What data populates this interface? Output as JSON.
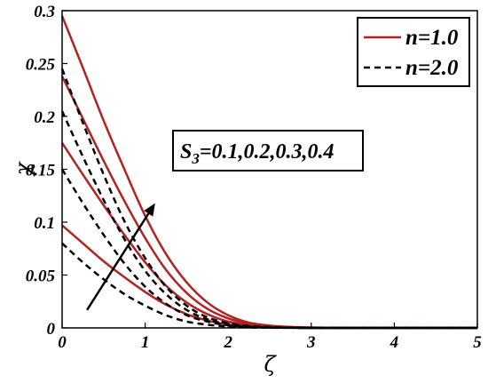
{
  "chart_data": {
    "type": "line",
    "title": "",
    "xlabel": "ζ",
    "ylabel": "χ",
    "xlim": [
      0,
      5
    ],
    "ylim": [
      0,
      0.3
    ],
    "x_ticks": [
      "0",
      "1",
      "2",
      "3",
      "4",
      "5"
    ],
    "y_ticks": [
      "0",
      "0.05",
      "0.1",
      "0.15",
      "0.2",
      "0.25",
      "0.3"
    ],
    "x": [
      0,
      0.25,
      0.5,
      0.75,
      1,
      1.25,
      1.5,
      1.75,
      2,
      2.25,
      2.5,
      2.75,
      3,
      3.5,
      4,
      4.5,
      5
    ],
    "legend": {
      "position": "top-right",
      "entries": [
        {
          "label": "n=1.0",
          "style": "solid",
          "color": "#b22222"
        },
        {
          "label": "n=2.0",
          "style": "dashed",
          "color": "#000000"
        }
      ]
    },
    "series": [
      {
        "group": "n=1.0",
        "S3": 0.1,
        "style": "solid",
        "color": "#b22222",
        "values": [
          0.097,
          0.08,
          0.063,
          0.048,
          0.034,
          0.022,
          0.013,
          0.007,
          0.003,
          0.0015,
          0.0007,
          0.0003,
          0.0001,
          0,
          0,
          0,
          0
        ]
      },
      {
        "group": "n=1.0",
        "S3": 0.2,
        "style": "solid",
        "color": "#b22222",
        "values": [
          0.175,
          0.145,
          0.116,
          0.088,
          0.062,
          0.04,
          0.024,
          0.013,
          0.006,
          0.003,
          0.0013,
          0.0005,
          0.0002,
          0,
          0,
          0,
          0
        ]
      },
      {
        "group": "n=1.0",
        "S3": 0.3,
        "style": "solid",
        "color": "#b22222",
        "values": [
          0.238,
          0.198,
          0.158,
          0.12,
          0.085,
          0.055,
          0.033,
          0.018,
          0.009,
          0.004,
          0.0017,
          0.0007,
          0.0003,
          0,
          0,
          0,
          0
        ]
      },
      {
        "group": "n=1.0",
        "S3": 0.4,
        "style": "solid",
        "color": "#b22222",
        "values": [
          0.295,
          0.246,
          0.196,
          0.15,
          0.106,
          0.07,
          0.043,
          0.024,
          0.012,
          0.005,
          0.0022,
          0.0009,
          0.0003,
          0,
          0,
          0,
          0
        ]
      },
      {
        "group": "n=2.0",
        "S3": 0.1,
        "style": "dashed",
        "color": "#000000",
        "values": [
          0.08,
          0.062,
          0.046,
          0.032,
          0.021,
          0.012,
          0.006,
          0.003,
          0.0013,
          0.0005,
          0.0002,
          0.0001,
          0,
          0,
          0,
          0,
          0
        ]
      },
      {
        "group": "n=2.0",
        "S3": 0.2,
        "style": "dashed",
        "color": "#000000",
        "values": [
          0.15,
          0.118,
          0.088,
          0.061,
          0.039,
          0.023,
          0.012,
          0.006,
          0.0025,
          0.001,
          0.0004,
          0.0001,
          0,
          0,
          0,
          0,
          0
        ]
      },
      {
        "group": "n=2.0",
        "S3": 0.3,
        "style": "dashed",
        "color": "#000000",
        "values": [
          0.205,
          0.162,
          0.121,
          0.084,
          0.054,
          0.032,
          0.017,
          0.008,
          0.0035,
          0.0014,
          0.0005,
          0.0002,
          0,
          0,
          0,
          0,
          0
        ]
      },
      {
        "group": "n=2.0",
        "S3": 0.4,
        "style": "dashed",
        "color": "#000000",
        "values": [
          0.245,
          0.194,
          0.145,
          0.101,
          0.066,
          0.039,
          0.021,
          0.01,
          0.0045,
          0.0018,
          0.0007,
          0.0002,
          0,
          0,
          0,
          0,
          0
        ]
      }
    ],
    "annotation": {
      "text_main": "S",
      "text_sub": "3",
      "text_rest": "=0.1,0.2,0.3,0.4",
      "arrow_from": [
        0.3,
        0.017
      ],
      "arrow_to": [
        1.12,
        0.118
      ]
    },
    "grid": false
  }
}
